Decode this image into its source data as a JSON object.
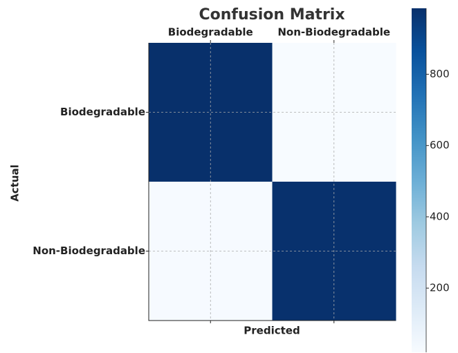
{
  "chart_data": {
    "type": "heatmap",
    "title": "Confusion Matrix",
    "xlabel": "Predicted",
    "ylabel": "Actual",
    "x_categories": [
      "Biodegradable",
      "Non-Biodegradable"
    ],
    "y_categories": [
      "Biodegradable",
      "Non-Biodegradable"
    ],
    "values": [
      [
        985,
        20
      ],
      [
        25,
        980
      ]
    ],
    "colormap": [
      "#f7fbff",
      "#deebf7",
      "#c6dbef",
      "#9ecae1",
      "#6baed6",
      "#4292c6",
      "#2171b5",
      "#08519c",
      "#08306b"
    ],
    "clim": [
      20,
      985
    ],
    "cticks": [
      200,
      400,
      600,
      800
    ],
    "grid": true
  }
}
